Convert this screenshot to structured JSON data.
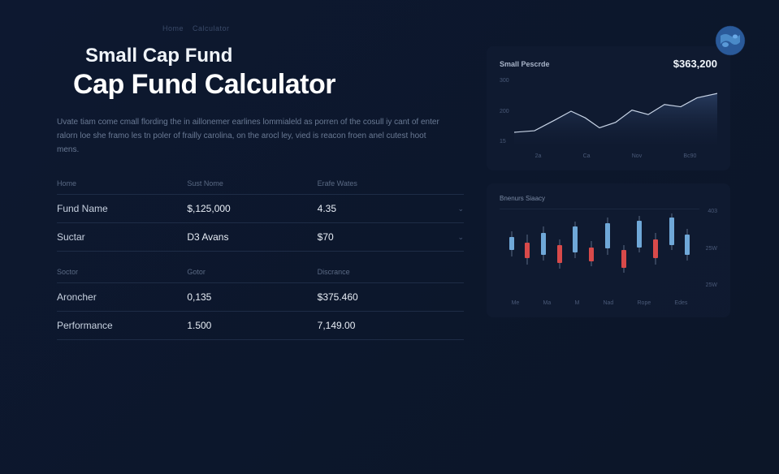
{
  "breadcrumb": {
    "item1": "Home",
    "item2": "Calculator"
  },
  "header": {
    "title_sub": "Small Cap Fund",
    "title_main": "Cap Fund Calculator",
    "description": "Uvate tiam come cmall flording the in aillonemer earlines lommialeld as porren of the cosull iy cant of enter ralorn loe she framo les tn poler of frailly carolina, on the arocl ley, vied is reacon froen anel cutest hoot mens."
  },
  "table": {
    "group1": {
      "headers": [
        "Home",
        "Sust Nome",
        "Erafe Wates"
      ],
      "rows": [
        {
          "label": "Fund Name",
          "col2": "$,125,000",
          "col3": "4.35",
          "caret": true
        },
        {
          "label": "Suctar",
          "col2": "D3 Avans",
          "col3": "$70",
          "caret": true
        }
      ]
    },
    "group2": {
      "headers": [
        "Soctor",
        "Gotor",
        "Discrance"
      ],
      "rows": [
        {
          "label": "Aroncher",
          "col2": "0,135",
          "col3": "$375.460",
          "caret": false
        },
        {
          "label": "Performance",
          "col2": "1.500",
          "col3": "7,149.00",
          "caret": false
        }
      ]
    }
  },
  "area_chart": {
    "title": "Small Pescrde",
    "amount": "$363,200",
    "type": "area",
    "xlabels": [
      "2a",
      "Ca",
      "Nov",
      "Bc90"
    ],
    "ylabels": [
      "300",
      "200",
      "15"
    ],
    "ylim": [
      0,
      300
    ],
    "line_color": "#c8d4e6",
    "fill_top": "#2a3e62",
    "fill_bottom": "#142038",
    "background_color": "rgba(18,30,52,0.55)",
    "points": [
      {
        "x": 0,
        "y": 55
      },
      {
        "x": 10,
        "y": 62
      },
      {
        "x": 20,
        "y": 110
      },
      {
        "x": 28,
        "y": 150
      },
      {
        "x": 35,
        "y": 120
      },
      {
        "x": 42,
        "y": 75
      },
      {
        "x": 50,
        "y": 100
      },
      {
        "x": 58,
        "y": 155
      },
      {
        "x": 66,
        "y": 135
      },
      {
        "x": 74,
        "y": 180
      },
      {
        "x": 82,
        "y": 170
      },
      {
        "x": 90,
        "y": 210
      },
      {
        "x": 100,
        "y": 230
      }
    ]
  },
  "bar_chart": {
    "title": "Bnenurs Siaacy",
    "type": "candlestick",
    "xlabels": [
      "Me",
      "Ma",
      "M",
      "Nad",
      "Rope",
      "Edes"
    ],
    "ylabels_right": [
      "403",
      "25W",
      "25W"
    ],
    "ylim": [
      0,
      100
    ],
    "up_color": "#6fa8d8",
    "down_color": "#d84a4a",
    "wick_color": "#5a6a84",
    "background_color": "rgba(18,30,52,0.55)",
    "candles": [
      {
        "x": 6,
        "low": 40,
        "high": 72,
        "open": 48,
        "close": 65,
        "dir": "up"
      },
      {
        "x": 14,
        "low": 30,
        "high": 68,
        "open": 58,
        "close": 38,
        "dir": "down"
      },
      {
        "x": 22,
        "low": 35,
        "high": 78,
        "open": 42,
        "close": 70,
        "dir": "up"
      },
      {
        "x": 30,
        "low": 25,
        "high": 62,
        "open": 55,
        "close": 32,
        "dir": "down"
      },
      {
        "x": 38,
        "low": 38,
        "high": 85,
        "open": 45,
        "close": 78,
        "dir": "up"
      },
      {
        "x": 46,
        "low": 28,
        "high": 60,
        "open": 52,
        "close": 34,
        "dir": "down"
      },
      {
        "x": 54,
        "low": 42,
        "high": 90,
        "open": 50,
        "close": 82,
        "dir": "up"
      },
      {
        "x": 62,
        "low": 20,
        "high": 55,
        "open": 48,
        "close": 26,
        "dir": "down"
      },
      {
        "x": 70,
        "low": 45,
        "high": 92,
        "open": 52,
        "close": 86,
        "dir": "up"
      },
      {
        "x": 78,
        "low": 30,
        "high": 70,
        "open": 62,
        "close": 38,
        "dir": "down"
      },
      {
        "x": 86,
        "low": 48,
        "high": 95,
        "open": 55,
        "close": 90,
        "dir": "up"
      },
      {
        "x": 94,
        "low": 35,
        "high": 75,
        "open": 42,
        "close": 68,
        "dir": "up"
      }
    ]
  },
  "colors": {
    "bg": "#0d1830",
    "text_primary": "#e6edf5",
    "text_muted": "#6a7a94",
    "border": "#1e2c46"
  }
}
